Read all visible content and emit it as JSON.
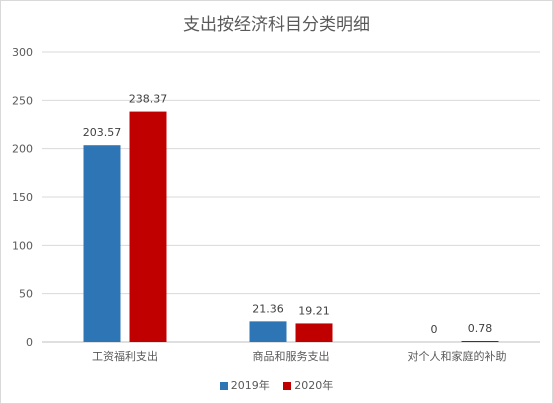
{
  "chart_data": {
    "type": "bar",
    "title": "支出按经济科目分类明细",
    "categories": [
      "工资福利支出",
      "商品和服务支出",
      "对个人和家庭的补助"
    ],
    "series": [
      {
        "name": "2019年",
        "color": "#2e75b6",
        "values": [
          203.57,
          21.36,
          0
        ],
        "labels": [
          "203.57",
          "21.36",
          "0"
        ]
      },
      {
        "name": "2020年",
        "color": "#c00000",
        "values": [
          238.37,
          19.21,
          0.78
        ],
        "labels": [
          "238.37",
          "19.21",
          "0.78"
        ]
      }
    ],
    "ylim": [
      0,
      300
    ],
    "yticks": [
      "0",
      "50",
      "100",
      "150",
      "200",
      "250",
      "300"
    ],
    "grid": true,
    "legend": "bottom"
  }
}
